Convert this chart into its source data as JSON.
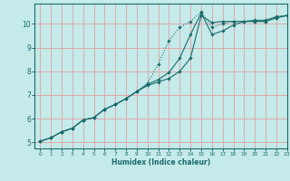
{
  "xlabel": "Humidex (Indice chaleur)",
  "bg_color": "#c5eaea",
  "grid_color": "#dea8a8",
  "line_color": "#1a6b6b",
  "xlim": [
    -0.5,
    23
  ],
  "ylim": [
    4.75,
    10.85
  ],
  "xticks": [
    0,
    1,
    2,
    3,
    4,
    5,
    6,
    7,
    8,
    9,
    10,
    11,
    12,
    13,
    14,
    15,
    16,
    17,
    18,
    19,
    20,
    21,
    22,
    23
  ],
  "yticks": [
    5,
    6,
    7,
    8,
    9,
    10
  ],
  "line1_x": [
    0,
    1,
    2,
    3,
    4,
    5,
    6,
    7,
    8,
    9,
    10,
    11,
    12,
    13,
    14,
    15,
    16,
    17,
    18,
    19,
    20,
    21,
    22,
    23
  ],
  "line1_y": [
    5.05,
    5.2,
    5.45,
    5.6,
    5.95,
    6.05,
    6.4,
    6.6,
    6.85,
    7.15,
    7.4,
    7.55,
    7.7,
    8.0,
    8.55,
    10.35,
    10.05,
    10.1,
    10.1,
    10.1,
    10.1,
    10.1,
    10.25,
    10.35
  ],
  "line2_x": [
    0,
    1,
    2,
    3,
    4,
    5,
    6,
    7,
    8,
    9,
    10,
    11,
    12,
    13,
    14,
    15,
    16,
    17,
    18,
    19,
    20,
    21,
    22,
    23
  ],
  "line2_y": [
    5.05,
    5.2,
    5.45,
    5.6,
    5.95,
    6.05,
    6.4,
    6.6,
    6.85,
    7.15,
    7.45,
    7.65,
    7.95,
    8.55,
    9.55,
    10.45,
    9.55,
    9.7,
    9.95,
    10.1,
    10.15,
    10.15,
    10.3,
    10.35
  ],
  "line3_x": [
    0,
    1,
    2,
    3,
    4,
    5,
    6,
    7,
    8,
    9,
    10,
    11,
    12,
    13,
    14,
    15,
    16,
    17,
    18,
    19,
    20,
    21,
    22,
    23
  ],
  "line3_y": [
    5.05,
    5.2,
    5.45,
    5.6,
    5.95,
    6.05,
    6.4,
    6.6,
    6.85,
    7.15,
    7.5,
    8.3,
    9.3,
    9.85,
    10.1,
    10.5,
    9.85,
    10.0,
    10.1,
    10.1,
    10.1,
    10.1,
    10.25,
    10.35
  ]
}
